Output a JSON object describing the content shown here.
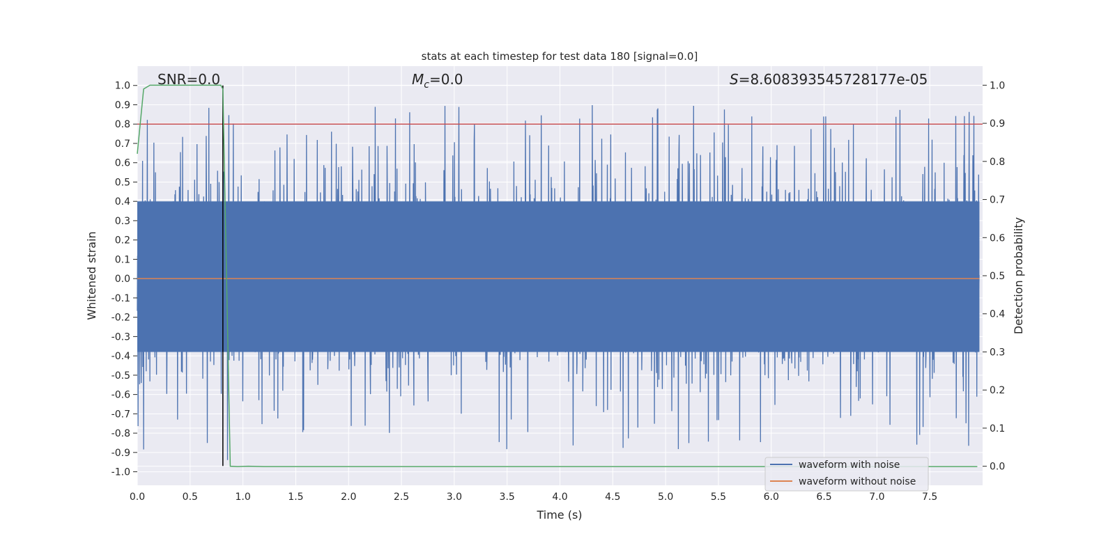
{
  "chart_data": {
    "type": "line",
    "title": "stats at each timestep for test data 180 [signal=0.0]",
    "xlabel": "Time (s)",
    "ylabel": "Whitened strain",
    "ylabel_right": "Detection probability",
    "xlim": [
      0,
      8
    ],
    "ylim": [
      -1.07,
      1.1
    ],
    "ylim_right": [
      -0.05,
      1.05
    ],
    "xticks": [
      "0.0",
      "0.5",
      "1.0",
      "1.5",
      "2.0",
      "2.5",
      "3.0",
      "3.5",
      "4.0",
      "4.5",
      "5.0",
      "5.5",
      "6.0",
      "6.5",
      "7.0",
      "7.5"
    ],
    "yticks": [
      "1.0",
      "0.9",
      "0.8",
      "0.7",
      "0.6",
      "0.5",
      "0.4",
      "0.3",
      "0.2",
      "0.1",
      "0.0",
      "-0.1",
      "-0.2",
      "-0.3",
      "-0.4",
      "-0.5",
      "-0.6",
      "-0.7",
      "-0.8",
      "-0.9",
      "-1.0"
    ],
    "yticks_right": [
      "1.0",
      "0.9",
      "0.8",
      "0.7",
      "0.6",
      "0.5",
      "0.4",
      "0.3",
      "0.2",
      "0.1",
      "0.0"
    ],
    "grid": true,
    "annotations": {
      "snr": "SNR=0.0",
      "mc_symbol": "M",
      "mc_sub": "c",
      "mc_value": "=0.0",
      "s_symbol": "S",
      "s_value": "=8.608393545728177e-05"
    },
    "threshold": {
      "value": 0.8,
      "color": "#c44e52"
    },
    "marker_time": 0.81,
    "series": [
      {
        "name": "waveform with noise",
        "color": "#4c72b0",
        "axis": "left",
        "amplitude_range": [
          -0.97,
          1.0
        ]
      },
      {
        "name": "waveform without noise",
        "color": "#dd8452",
        "axis": "left",
        "value": 0.0
      },
      {
        "name": "detection probability",
        "color": "#55a868",
        "axis": "right",
        "x": [
          0,
          0.06,
          0.12,
          0.5,
          0.79,
          0.81,
          0.88,
          0.95,
          1.05,
          1.2,
          3.0,
          6.0,
          7.95
        ],
        "y": [
          0.82,
          0.99,
          1.0,
          1.0,
          1.0,
          0.99,
          0.0,
          -0.001,
          0.0,
          -0.001,
          -0.001,
          -0.001,
          -0.001
        ]
      }
    ],
    "legend": {
      "placement": "lower-right",
      "entries": [
        "waveform with noise",
        "waveform without noise"
      ]
    }
  }
}
